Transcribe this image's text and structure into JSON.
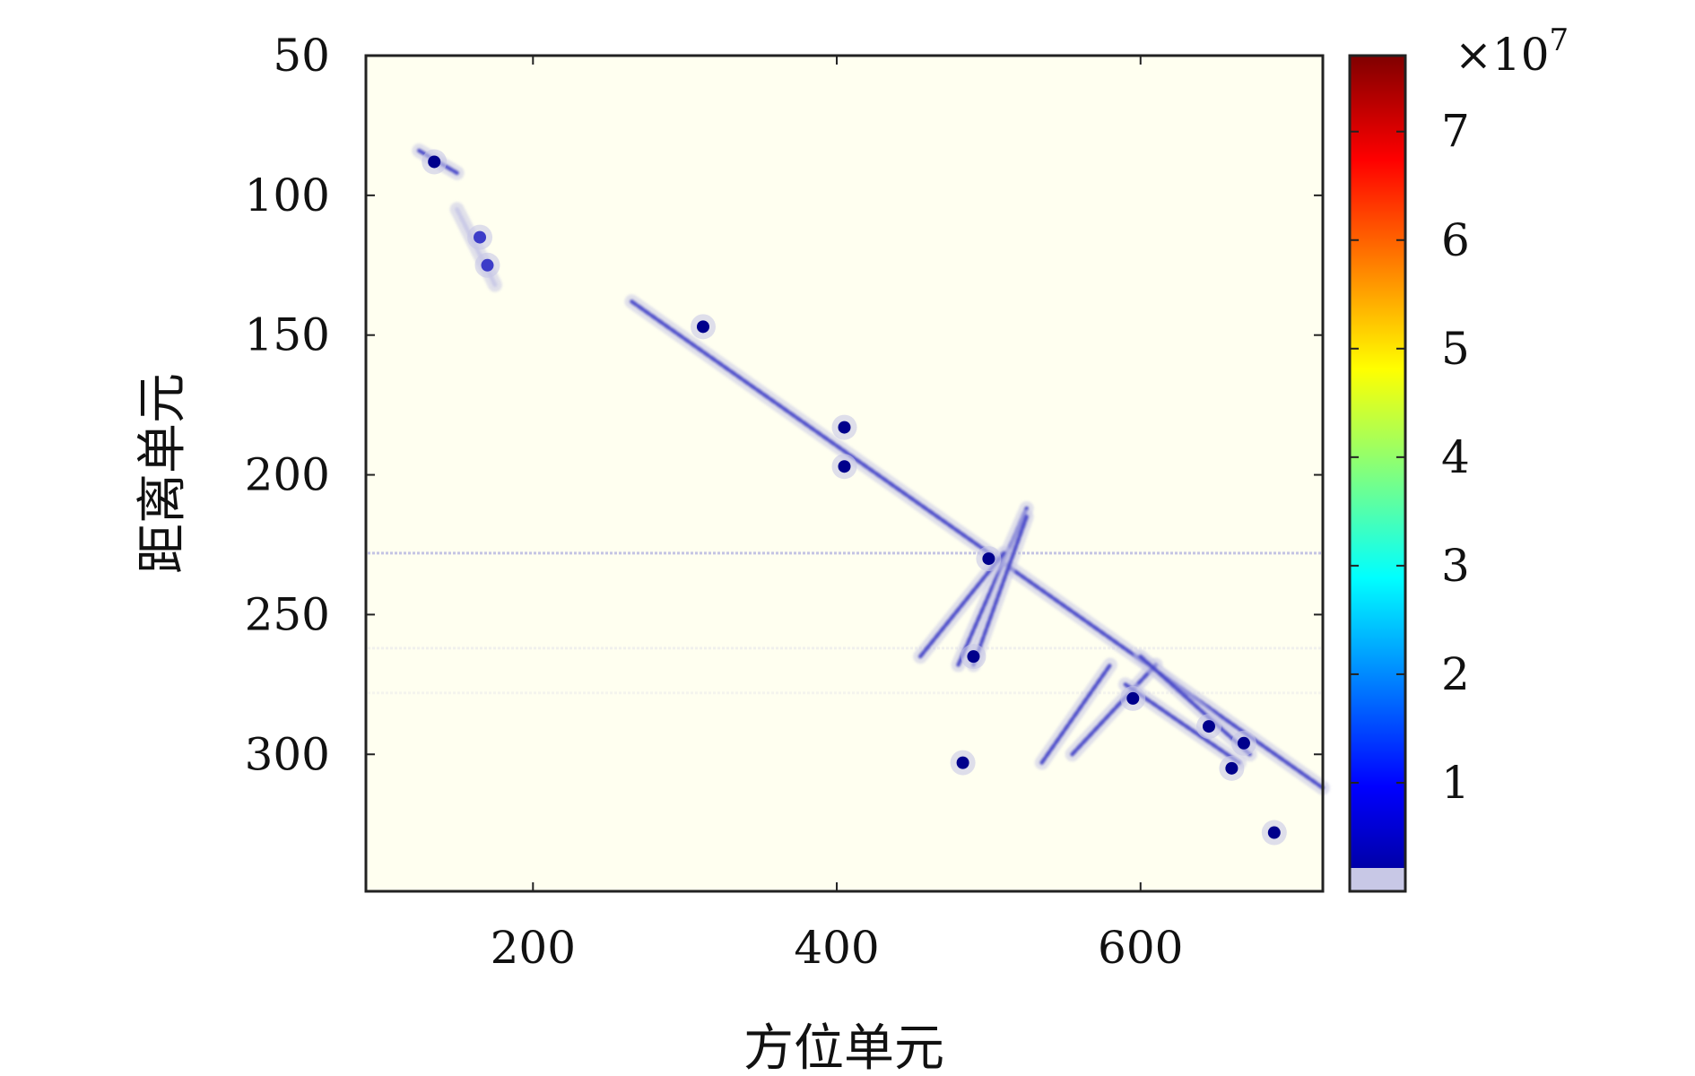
{
  "chart_data": {
    "type": "heatmap",
    "title": "",
    "xlabel": "方位单元",
    "ylabel": "距离单元",
    "xlim": [
      90,
      720
    ],
    "ylim": [
      349,
      50
    ],
    "y_axis_inverted": true,
    "grid": false,
    "x_ticks": [
      200,
      400,
      600
    ],
    "x_tick_labels": [
      "200",
      "400",
      "600"
    ],
    "y_ticks": [
      50,
      100,
      150,
      200,
      250,
      300
    ],
    "y_tick_labels": [
      "50",
      "100",
      "150",
      "200",
      "250",
      "300"
    ],
    "colorbar": {
      "colormap": "jet",
      "range": [
        0,
        7.7
      ],
      "ticks": [
        1,
        2,
        3,
        4,
        5,
        6,
        7
      ],
      "tick_labels": [
        "1",
        "2",
        "3",
        "4",
        "5",
        "6",
        "7"
      ],
      "exponent_label": "×10",
      "exponent_power": "7"
    },
    "background_color": "#fffff0",
    "low_intensity_color": "#c8c8e6",
    "mid_intensity_color": "#3c3cc8",
    "high_intensity_color": "#00008c",
    "targets": [
      {
        "x": 135,
        "y": 88,
        "intensity": 0.9
      },
      {
        "x": 165,
        "y": 115,
        "intensity": 0.5
      },
      {
        "x": 170,
        "y": 125,
        "intensity": 0.6
      },
      {
        "x": 312,
        "y": 147,
        "intensity": 0.9
      },
      {
        "x": 405,
        "y": 183,
        "intensity": 1.0
      },
      {
        "x": 405,
        "y": 197,
        "intensity": 0.8
      },
      {
        "x": 500,
        "y": 230,
        "intensity": 1.0
      },
      {
        "x": 490,
        "y": 265,
        "intensity": 0.9
      },
      {
        "x": 595,
        "y": 280,
        "intensity": 1.0
      },
      {
        "x": 645,
        "y": 290,
        "intensity": 0.9
      },
      {
        "x": 668,
        "y": 296,
        "intensity": 1.0
      },
      {
        "x": 660,
        "y": 305,
        "intensity": 0.9
      },
      {
        "x": 483,
        "y": 303,
        "intensity": 0.8
      },
      {
        "x": 688,
        "y": 328,
        "intensity": 0.9
      }
    ],
    "streaks": [
      {
        "from": [
          265,
          138
        ],
        "to": [
          720,
          312
        ],
        "intensity": 0.55
      },
      {
        "from": [
          150,
          105
        ],
        "to": [
          175,
          132
        ],
        "intensity": 0.35
      },
      {
        "from": [
          125,
          84
        ],
        "to": [
          150,
          92
        ],
        "intensity": 0.6
      },
      {
        "from": [
          480,
          268
        ],
        "to": [
          525,
          212
        ],
        "intensity": 0.7
      },
      {
        "from": [
          490,
          268
        ],
        "to": [
          525,
          215
        ],
        "intensity": 0.6
      },
      {
        "from": [
          455,
          265
        ],
        "to": [
          510,
          228
        ],
        "intensity": 0.4
      },
      {
        "from": [
          535,
          303
        ],
        "to": [
          580,
          268
        ],
        "intensity": 0.5
      },
      {
        "from": [
          555,
          300
        ],
        "to": [
          610,
          268
        ],
        "intensity": 0.55
      },
      {
        "from": [
          600,
          265
        ],
        "to": [
          672,
          300
        ],
        "intensity": 0.75
      },
      {
        "from": [
          590,
          275
        ],
        "to": [
          665,
          303
        ],
        "intensity": 0.7
      }
    ],
    "horizontal_lines": [
      {
        "y": 228,
        "intensity": 0.3
      },
      {
        "y": 262,
        "intensity": 0.08
      },
      {
        "y": 278,
        "intensity": 0.06
      }
    ]
  }
}
